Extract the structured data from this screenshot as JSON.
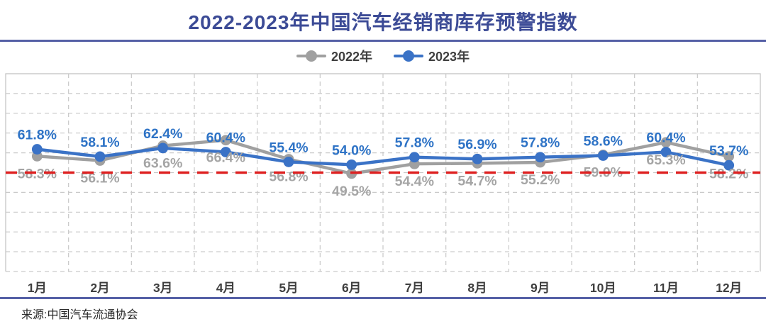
{
  "header": {
    "title": "2022-2023年中国汽车经销商库存预警指数"
  },
  "legend": {
    "items": [
      {
        "label": "2022年"
      },
      {
        "label": "2023年"
      }
    ]
  },
  "source_note": "来源:中国汽车流通协会",
  "colors": {
    "title": "#3C4B96",
    "divider": "#5560A6",
    "axis_text": "#3F3F3F",
    "gridline": "#C9C9C9",
    "frame": "#C0C0C0"
  },
  "chart_data": {
    "type": "line",
    "title": "2022-2023年中国汽车经销商库存预警指数",
    "categories": [
      "1月",
      "2月",
      "3月",
      "4月",
      "5月",
      "6月",
      "7月",
      "8月",
      "9月",
      "10月",
      "11月",
      "12月"
    ],
    "series": [
      {
        "name": "2022年",
        "color": "#A0A0A0",
        "label_color": "#A5A5A5",
        "label_position": "below",
        "values": [
          58.3,
          56.1,
          63.6,
          66.4,
          56.8,
          49.5,
          54.4,
          54.7,
          55.2,
          59.0,
          65.3,
          58.2
        ]
      },
      {
        "name": "2023年",
        "color": "#3A72C6",
        "label_color": "#2E73C6",
        "label_position": "above",
        "values": [
          61.8,
          58.1,
          62.4,
          60.4,
          55.4,
          54.0,
          57.8,
          56.9,
          57.8,
          58.6,
          60.4,
          53.7
        ]
      }
    ],
    "reference_line": {
      "value": 50,
      "color": "#DE2121",
      "style": "dashed"
    },
    "ylim": [
      0,
      100
    ],
    "grid": true,
    "legend_position": "top",
    "value_suffix": "%",
    "xlabel": "",
    "ylabel": ""
  }
}
